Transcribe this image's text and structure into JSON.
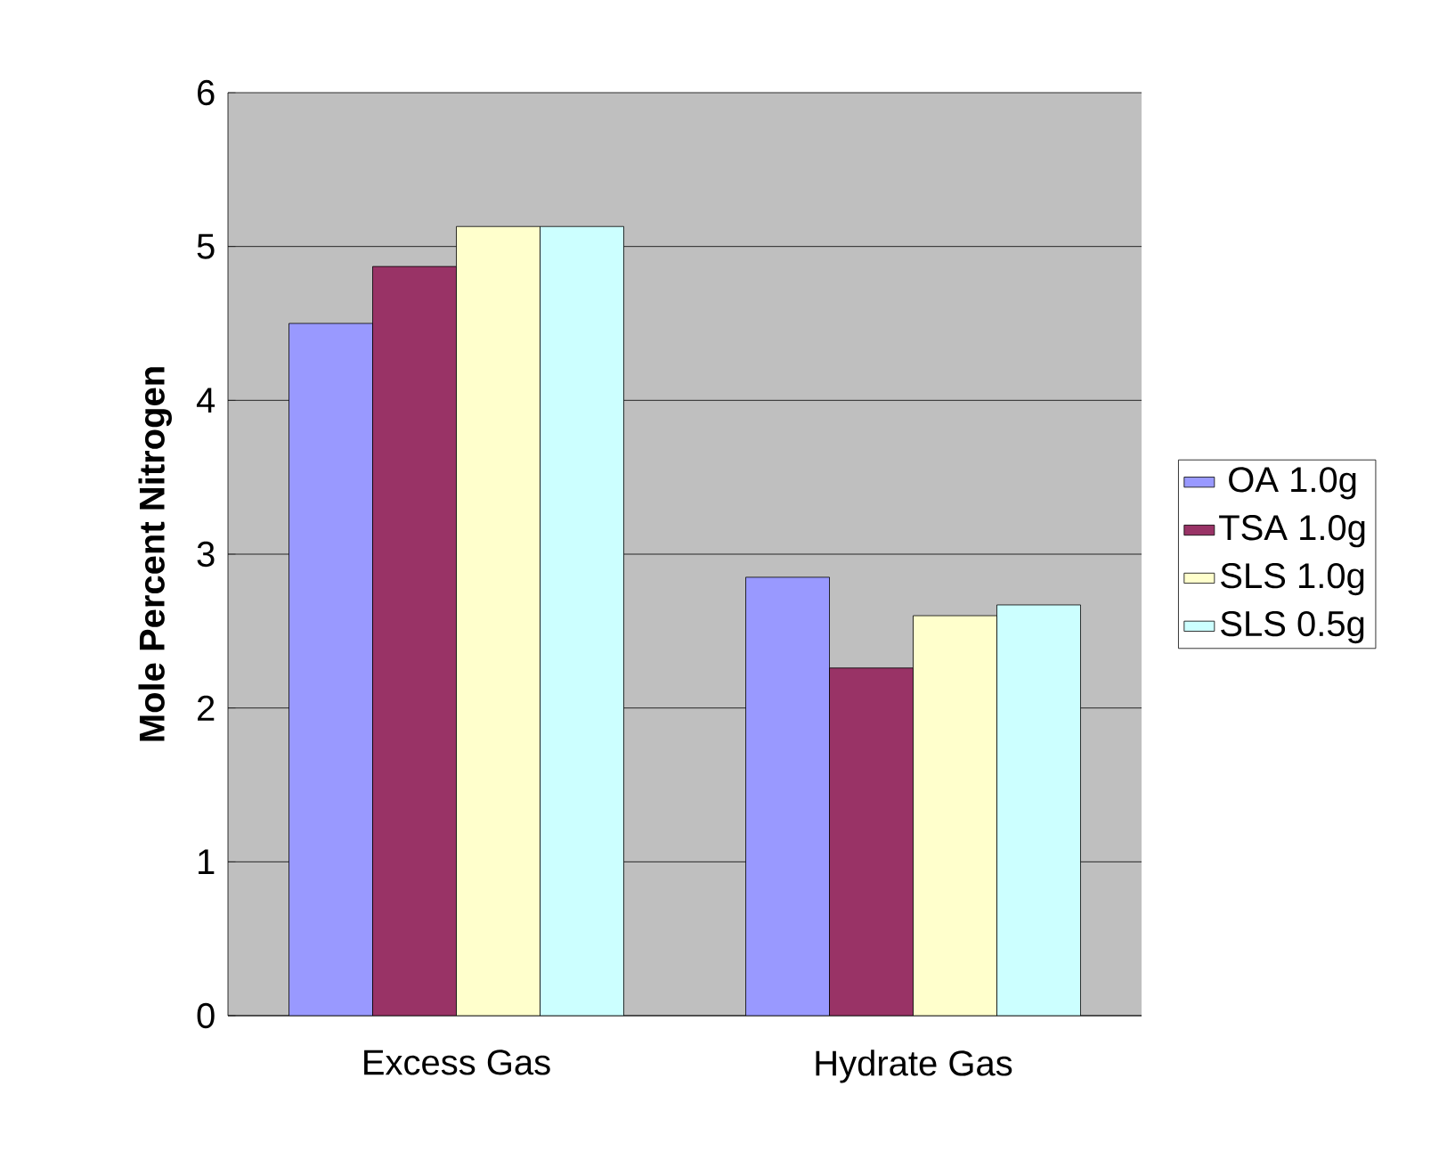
{
  "chart_data": {
    "type": "bar",
    "ylabel": "Mole Percent Nitrogen",
    "categories": [
      "Excess Gas",
      "Hydrate Gas"
    ],
    "series": [
      {
        "name": "OA 1.0g",
        "color": "#9999ff",
        "values": [
          4.5,
          2.85
        ]
      },
      {
        "name": "TSA 1.0g",
        "color": "#993366",
        "values": [
          4.87,
          2.26
        ]
      },
      {
        "name": "SLS 1.0g",
        "color": "#ffffcc",
        "values": [
          5.13,
          2.6
        ]
      },
      {
        "name": "SLS 0.5g",
        "color": "#ccffff",
        "values": [
          5.13,
          2.67
        ]
      }
    ],
    "ylim": [
      0,
      6
    ],
    "yticks": [
      0,
      1,
      2,
      3,
      4,
      5,
      6
    ],
    "grid": "y",
    "legend": "right"
  }
}
